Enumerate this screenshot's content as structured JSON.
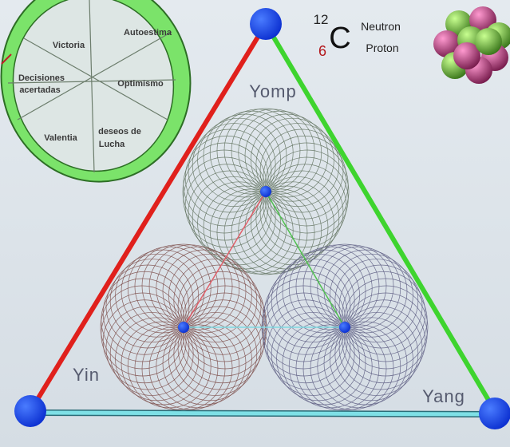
{
  "ellipse": {
    "sections": [
      "Victoria",
      "Autoestima",
      "Optimismo",
      "Valentia"
    ],
    "decisiones": [
      "Decisiones",
      "acertadas"
    ],
    "deseos": [
      "deseos de",
      "Lucha"
    ]
  },
  "triangle": {
    "top": "Yomp",
    "left": "Yin",
    "right": "Yang"
  },
  "atom": {
    "mass": "12",
    "symbol": "C",
    "number": "6",
    "neutron": "Neutron",
    "proton": "Proton"
  }
}
